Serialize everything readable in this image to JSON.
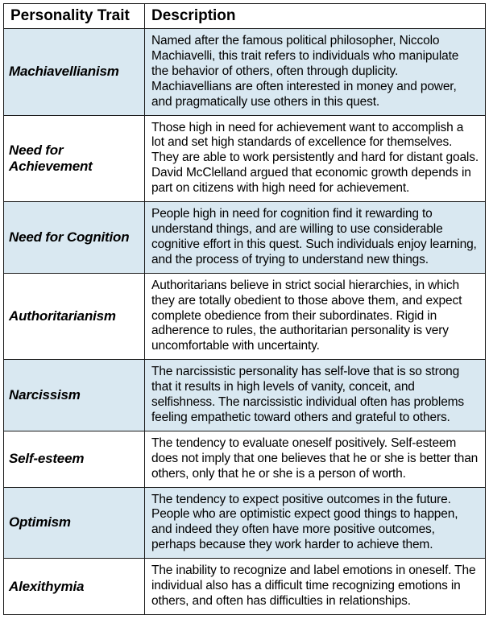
{
  "table": {
    "columns": [
      "Personality Trait",
      "Description"
    ],
    "header_fontsize": 19,
    "header_fontweight": 700,
    "trait_fontsize": 17,
    "trait_fontstyle": "italic",
    "trait_fontweight": 700,
    "desc_fontsize": 15.5,
    "desc_lineheight": 1.22,
    "border_color": "#1a1a1a",
    "border_width": 1.5,
    "alt_row_color": "#d9e8f1",
    "plain_row_color": "#ffffff",
    "trait_col_width": 175,
    "rows": [
      {
        "trait": "Machiavellianism",
        "description": "Named after the famous political philosopher, Niccolo Machiavelli, this trait refers to individuals who manipulate the behavior of others, often through duplicity. Machiavellians are often interested in money and power, and pragmatically use others in this quest.",
        "alt": true
      },
      {
        "trait": "Need for Achievement",
        "description": "Those high in need for achievement want to accomplish a lot and set high standards of excellence for themselves. They are able to work persistently and hard for distant goals. David McClelland argued that economic growth depends in part on citizens with high need for achievement.",
        "alt": false
      },
      {
        "trait": "Need for Cognition",
        "description": "People high in need for cognition find it rewarding to understand things, and are willing to use considerable cognitive effort in this quest. Such individuals enjoy learning, and the process of trying to understand new things.",
        "alt": true
      },
      {
        "trait": "Authoritarianism",
        "description": "Authoritarians believe in strict social hierarchies, in which they are totally obedient to those above them, and expect complete obedience from their subordinates. Rigid in adherence to rules, the authoritarian personality is very uncomfortable with uncertainty.",
        "alt": false
      },
      {
        "trait": "Narcissism",
        "description": "The narcissistic personality has self-love that is so strong that it results in high levels of vanity, conceit, and selfishness. The narcissistic individual often has problems feeling empathetic toward others and grateful to others.",
        "alt": true
      },
      {
        "trait": "Self-esteem",
        "description": "The tendency to evaluate oneself positively. Self-esteem does not imply that one believes that he or she is better than others, only that he or she is a person of worth.",
        "alt": false
      },
      {
        "trait": "Optimism",
        "description": "The tendency to expect positive outcomes in the future. People who are optimistic expect good things to happen, and indeed they often have more positive outcomes, perhaps because they work harder to achieve them.",
        "alt": true
      },
      {
        "trait": "Alexithymia",
        "description": "The inability to recognize and label emotions in oneself. The individual also has a difficult time recognizing emotions in others, and often has difficulties in relationships.",
        "alt": false
      }
    ]
  }
}
